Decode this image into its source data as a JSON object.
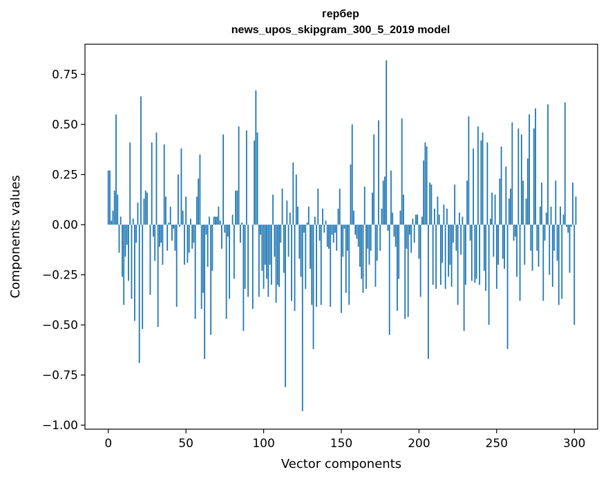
{
  "chart_data": {
    "type": "bar",
    "title": "гербер",
    "subtitle": "news_upos_skipgram_300_5_2019 model",
    "xlabel": "Vector components",
    "ylabel": "Components values",
    "xlim": [
      -15,
      315
    ],
    "ylim": [
      -1.02,
      0.9
    ],
    "xticks": [
      0,
      50,
      100,
      150,
      200,
      250,
      300
    ],
    "xtick_labels": [
      "0",
      "50",
      "100",
      "150",
      "200",
      "250",
      "300"
    ],
    "yticks": [
      0.75,
      0.5,
      0.25,
      0.0,
      -0.25,
      -0.5,
      -0.75,
      -1.0
    ],
    "ytick_labels": [
      "0.75",
      "0.50",
      "0.25",
      "0.00",
      "−0.25",
      "−0.50",
      "−0.75",
      "−1.00"
    ],
    "bar_color": "#1f77b4",
    "values": [
      0.27,
      0.27,
      0.02,
      0.07,
      0.17,
      0.55,
      0.15,
      -0.14,
      0.04,
      -0.26,
      -0.4,
      -0.16,
      -0.1,
      -0.28,
      0.41,
      -0.37,
      0.03,
      -0.48,
      -0.09,
      0.11,
      -0.69,
      0.64,
      -0.52,
      0.13,
      0.17,
      0.16,
      0.0,
      -0.35,
      0.41,
      -0.06,
      -0.18,
      0.46,
      -0.51,
      -0.11,
      -0.09,
      -0.2,
      0.4,
      0.14,
      -0.13,
      0.01,
      0.09,
      -0.08,
      -0.02,
      -0.13,
      -0.41,
      0.25,
      -0.01,
      0.38,
      0.07,
      -0.2,
      0.14,
      -0.19,
      -0.14,
      0.03,
      -0.12,
      -0.09,
      -0.47,
      0.14,
      0.23,
      0.35,
      -0.42,
      -0.34,
      -0.67,
      -0.05,
      -0.21,
      0.04,
      -0.55,
      -0.23,
      0.04,
      0.04,
      0.04,
      0.09,
      0.02,
      -0.12,
      0.45,
      -0.04,
      -0.47,
      -0.06,
      -0.37,
      0.0,
      0.05,
      -0.27,
      0.17,
      0.17,
      0.49,
      -0.09,
      0.01,
      -0.53,
      -0.32,
      0.47,
      -0.36,
      0.0,
      0.0,
      -0.42,
      0.42,
      0.67,
      0.46,
      -0.36,
      -0.05,
      -0.23,
      -0.32,
      -0.2,
      -0.27,
      -0.36,
      -0.2,
      -0.3,
      0.15,
      -0.16,
      -0.39,
      -0.3,
      -0.31,
      -0.09,
      0.18,
      -0.24,
      -0.81,
      0.12,
      -0.16,
      0.06,
      -0.38,
      0.31,
      -0.43,
      0.25,
      0.09,
      -0.17,
      -0.26,
      -0.93,
      -0.04,
      -0.32,
      0.01,
      0.09,
      -0.22,
      -0.4,
      -0.62,
      0.04,
      -0.41,
      0.18,
      -0.08,
      -0.4,
      0.08,
      -0.04,
      0.02,
      -0.11,
      -0.12,
      -0.41,
      -0.05,
      -0.09,
      -0.04,
      -0.13,
      0.08,
      0.18,
      -0.44,
      -0.16,
      -0.02,
      -0.34,
      -0.13,
      -0.4,
      0.3,
      0.5,
      0.07,
      -0.05,
      -0.07,
      -0.11,
      -0.21,
      -0.27,
      -0.34,
      0.19,
      -0.32,
      -0.12,
      -0.2,
      -0.13,
      0.16,
      0.45,
      -0.31,
      -0.18,
      0.52,
      -0.13,
      0.08,
      0.22,
      0.24,
      0.82,
      -0.03,
      -0.55,
      0.27,
      0.06,
      -0.06,
      -0.11,
      -0.43,
      -0.27,
      0.07,
      0.53,
      0.15,
      -0.47,
      -0.12,
      -0.46,
      -0.05,
      -0.14,
      0.03,
      -0.09,
      0.05,
      0.05,
      -0.17,
      -0.36,
      0.04,
      0.32,
      0.41,
      0.39,
      -0.67,
      0.21,
      0.2,
      -0.3,
      0.08,
      -0.32,
      0.14,
      0.05,
      -0.3,
      -0.19,
      0.1,
      -0.32,
      0.08,
      -0.26,
      -0.2,
      -0.31,
      -0.09,
      0.2,
      -0.13,
      -0.4,
      0.06,
      -0.15,
      0.04,
      -0.53,
      -0.3,
      0.22,
      0.54,
      -0.08,
      -0.28,
      0.38,
      -0.29,
      -0.27,
      0.49,
      -0.3,
      0.42,
      0.46,
      -0.23,
      -0.33,
      0.41,
      -0.5,
      0.03,
      0.16,
      -0.16,
      0.15,
      -0.32,
      -0.2,
      0.23,
      0.39,
      -0.17,
      -0.22,
      0.29,
      -0.62,
      0.13,
      0.18,
      0.51,
      -0.08,
      -0.06,
      -0.26,
      0.48,
      -0.38,
      0.45,
      0.22,
      -0.2,
      0.13,
      0.33,
      0.55,
      -0.13,
      -0.23,
      0.48,
      0.58,
      -0.13,
      -0.21,
      0.09,
      0.21,
      -0.38,
      -0.08,
      0.06,
      0.6,
      -0.25,
      0.09,
      -0.31,
      -0.13,
      0.22,
      -0.18,
      -0.4,
      0.09,
      -0.37,
      0.05,
      0.61,
      -0.01,
      -0.04,
      -0.24,
      -0.01,
      0.21,
      -0.5,
      0.14
    ]
  }
}
